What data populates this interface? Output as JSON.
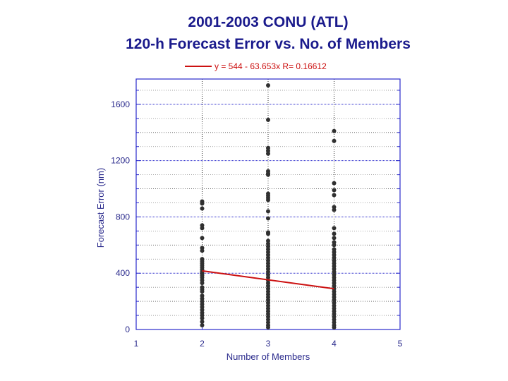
{
  "chart_data": {
    "type": "scatter",
    "title": "2001-2003 CONU (ATL)",
    "subtitle": "120-h Forecast Error vs. No. of Members",
    "xlabel": "Number of Members",
    "ylabel": "Forecast Error (nm)",
    "xlim": [
      1,
      5
    ],
    "ylim": [
      0,
      1780
    ],
    "xticks": [
      "1",
      "2",
      "3",
      "4",
      "5"
    ],
    "yticks": [
      "0",
      "400",
      "800",
      "1200",
      "1600"
    ],
    "grid": true,
    "legend": {
      "position": "top",
      "entries": [
        {
          "label": "y = 544 - 63.653x   R= 0.16612",
          "color": "#cc1111"
        }
      ]
    },
    "fit": {
      "intercept": 544,
      "slope": -63.653,
      "r": 0.16612,
      "x_range": [
        2,
        4
      ]
    },
    "series": [
      {
        "color": "#303030",
        "points": [
          [
            2,
            910
          ],
          [
            2,
            895
          ],
          [
            2,
            860
          ],
          [
            2,
            740
          ],
          [
            2,
            720
          ],
          [
            2,
            650
          ],
          [
            2,
            580
          ],
          [
            2,
            560
          ],
          [
            2,
            500
          ],
          [
            2,
            485
          ],
          [
            2,
            470
          ],
          [
            2,
            455
          ],
          [
            2,
            440
          ],
          [
            2,
            425
          ],
          [
            2,
            410
          ],
          [
            2,
            398
          ],
          [
            2,
            385
          ],
          [
            2,
            370
          ],
          [
            2,
            350
          ],
          [
            2,
            330
          ],
          [
            2,
            300
          ],
          [
            2,
            285
          ],
          [
            2,
            270
          ],
          [
            2,
            240
          ],
          [
            2,
            220
          ],
          [
            2,
            200
          ],
          [
            2,
            180
          ],
          [
            2,
            160
          ],
          [
            2,
            140
          ],
          [
            2,
            120
          ],
          [
            2,
            100
          ],
          [
            2,
            80
          ],
          [
            2,
            55
          ],
          [
            2,
            30
          ],
          [
            3,
            1735
          ],
          [
            3,
            1490
          ],
          [
            3,
            1290
          ],
          [
            3,
            1270
          ],
          [
            3,
            1250
          ],
          [
            3,
            1125
          ],
          [
            3,
            1110
          ],
          [
            3,
            1100
          ],
          [
            3,
            965
          ],
          [
            3,
            950
          ],
          [
            3,
            935
          ],
          [
            3,
            920
          ],
          [
            3,
            840
          ],
          [
            3,
            790
          ],
          [
            3,
            690
          ],
          [
            3,
            680
          ],
          [
            3,
            630
          ],
          [
            3,
            610
          ],
          [
            3,
            590
          ],
          [
            3,
            570
          ],
          [
            3,
            550
          ],
          [
            3,
            530
          ],
          [
            3,
            510
          ],
          [
            3,
            490
          ],
          [
            3,
            470
          ],
          [
            3,
            450
          ],
          [
            3,
            430
          ],
          [
            3,
            410
          ],
          [
            3,
            390
          ],
          [
            3,
            370
          ],
          [
            3,
            350
          ],
          [
            3,
            330
          ],
          [
            3,
            310
          ],
          [
            3,
            290
          ],
          [
            3,
            270
          ],
          [
            3,
            250
          ],
          [
            3,
            230
          ],
          [
            3,
            210
          ],
          [
            3,
            190
          ],
          [
            3,
            170
          ],
          [
            3,
            150
          ],
          [
            3,
            130
          ],
          [
            3,
            110
          ],
          [
            3,
            90
          ],
          [
            3,
            70
          ],
          [
            3,
            50
          ],
          [
            3,
            30
          ],
          [
            3,
            15
          ],
          [
            4,
            1410
          ],
          [
            4,
            1340
          ],
          [
            4,
            1040
          ],
          [
            4,
            990
          ],
          [
            4,
            955
          ],
          [
            4,
            870
          ],
          [
            4,
            850
          ],
          [
            4,
            720
          ],
          [
            4,
            680
          ],
          [
            4,
            650
          ],
          [
            4,
            620
          ],
          [
            4,
            600
          ],
          [
            4,
            570
          ],
          [
            4,
            550
          ],
          [
            4,
            530
          ],
          [
            4,
            510
          ],
          [
            4,
            490
          ],
          [
            4,
            470
          ],
          [
            4,
            450
          ],
          [
            4,
            430
          ],
          [
            4,
            410
          ],
          [
            4,
            390
          ],
          [
            4,
            370
          ],
          [
            4,
            350
          ],
          [
            4,
            330
          ],
          [
            4,
            310
          ],
          [
            4,
            290
          ],
          [
            4,
            270
          ],
          [
            4,
            250
          ],
          [
            4,
            230
          ],
          [
            4,
            210
          ],
          [
            4,
            190
          ],
          [
            4,
            170
          ],
          [
            4,
            150
          ],
          [
            4,
            130
          ],
          [
            4,
            110
          ],
          [
            4,
            90
          ],
          [
            4,
            70
          ],
          [
            4,
            50
          ],
          [
            4,
            30
          ],
          [
            4,
            15
          ]
        ]
      }
    ]
  }
}
